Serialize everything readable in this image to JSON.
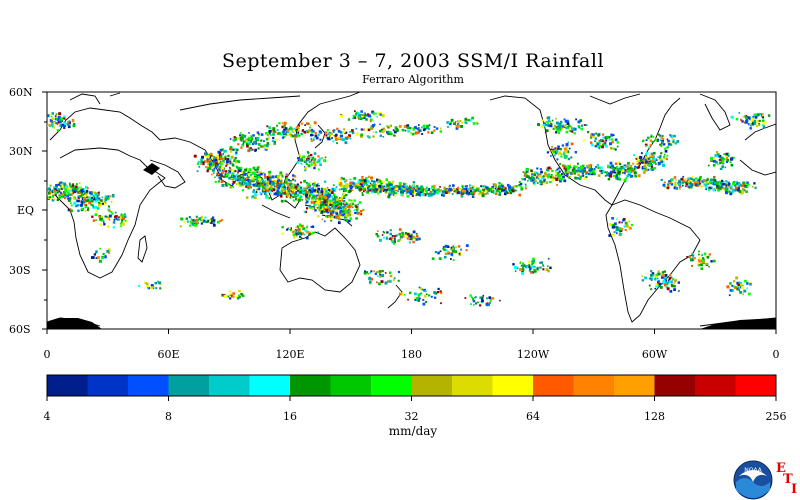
{
  "title": "September 3 – 7, 2003 SSM/I Rainfall",
  "subtitle": "Ferraro Algorithm",
  "lat_labels": [
    "60N",
    "30N",
    "EQ",
    "30S",
    "60S"
  ],
  "lon_labels": [
    "0",
    "60E",
    "120E",
    "180",
    "120W",
    "60W",
    "0"
  ],
  "colorbar": {
    "colors": [
      "#001e8c",
      "#0034c8",
      "#0050ff",
      "#00a0a0",
      "#00cccc",
      "#00ffff",
      "#009600",
      "#00c800",
      "#00ff00",
      "#b4b400",
      "#dcdc00",
      "#ffff00",
      "#ff5a00",
      "#ff8200",
      "#ffa000",
      "#960000",
      "#c80000",
      "#ff0000"
    ],
    "tick_labels": [
      "4",
      "8",
      "16",
      "32",
      "64",
      "128",
      "256"
    ],
    "units": "mm/day"
  },
  "logo": {
    "icon": "noaa-logo-icon",
    "text": "NOAA",
    "eti_letters": [
      "E",
      "T",
      "I"
    ]
  }
}
